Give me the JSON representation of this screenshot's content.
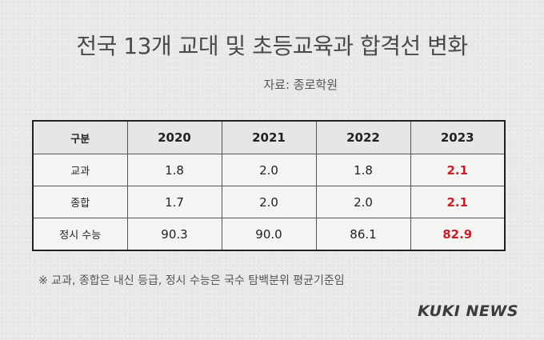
{
  "title": "전국 13개 교대 및 초등교육과 합격선 변화",
  "source": "자료: 종로학원",
  "table": {
    "headers": [
      "구분",
      "2020",
      "2021",
      "2022",
      "2023"
    ],
    "rows": [
      {
        "label": "교과",
        "values": [
          "1.8",
          "2.0",
          "1.8",
          "2.1"
        ]
      },
      {
        "label": "종합",
        "values": [
          "1.7",
          "2.0",
          "2.0",
          "2.1"
        ]
      },
      {
        "label": "정시 수능",
        "values": [
          "90.3",
          "90.0",
          "86.1",
          "82.9"
        ]
      }
    ],
    "highlight_color": "#c8202a"
  },
  "note": "※ 교과, 종합은 내신 등급, 정시 수능은 국수 탐백분위 평균기준임",
  "logo": "KUKI NEWS"
}
